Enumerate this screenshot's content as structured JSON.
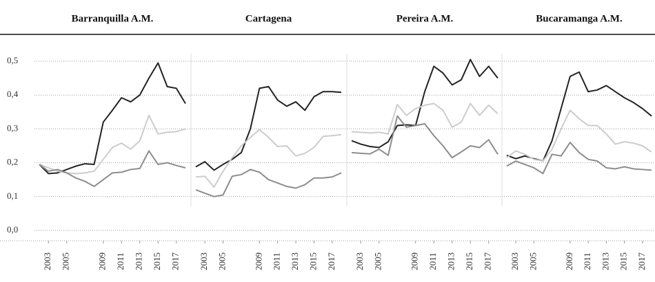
{
  "chart_data": [
    {
      "type": "line",
      "title": "Barranquilla A.M.",
      "x": [
        2002,
        2003,
        2004,
        2005,
        2006,
        2007,
        2008,
        2009,
        2010,
        2011,
        2012,
        2013,
        2014,
        2015,
        2016,
        2017,
        2018
      ],
      "xlim": [
        2002,
        2018
      ],
      "xticks": [
        2003,
        2005,
        2009,
        2011,
        2013,
        2015,
        2017
      ],
      "ylim": [
        0,
        0.5
      ],
      "yticks": [
        {
          "value": 0,
          "label": "0,0"
        },
        {
          "value": 0.1,
          "label": "0,1"
        },
        {
          "value": 0.2,
          "label": "0,2"
        },
        {
          "value": 0.3,
          "label": "0,3"
        },
        {
          "value": 0.4,
          "label": "0,4"
        },
        {
          "value": 0.5,
          "label": "0,5"
        }
      ],
      "grid": true,
      "series": [
        {
          "color": "#222222",
          "values": [
            0.195,
            0.168,
            0.17,
            0.18,
            0.19,
            0.197,
            0.195,
            0.32,
            0.355,
            0.392,
            0.38,
            0.4,
            0.45,
            0.495,
            0.425,
            0.42,
            0.375
          ]
        },
        {
          "color": "#cccccc",
          "values": [
            0.195,
            0.185,
            0.175,
            0.17,
            0.168,
            0.17,
            0.175,
            0.21,
            0.245,
            0.258,
            0.24,
            0.265,
            0.34,
            0.285,
            0.29,
            0.292,
            0.3
          ]
        },
        {
          "color": "#8c8c8c",
          "values": [
            0.195,
            0.175,
            0.18,
            0.17,
            0.155,
            0.145,
            0.13,
            0.15,
            0.17,
            0.172,
            0.18,
            0.183,
            0.235,
            0.195,
            0.2,
            0.192,
            0.185
          ]
        }
      ]
    },
    {
      "type": "line",
      "title": "Cartagena",
      "x": [
        2002,
        2003,
        2004,
        2005,
        2006,
        2007,
        2008,
        2009,
        2010,
        2011,
        2012,
        2013,
        2014,
        2015,
        2016,
        2017,
        2018
      ],
      "xlim": [
        2002,
        2018
      ],
      "xticks": [
        2003,
        2005,
        2009,
        2011,
        2013,
        2015,
        2017
      ],
      "series": [
        {
          "color": "#222222",
          "values": [
            0.188,
            0.203,
            0.178,
            0.195,
            0.21,
            0.23,
            0.3,
            0.42,
            0.425,
            0.385,
            0.367,
            0.38,
            0.355,
            0.395,
            0.41,
            0.41,
            0.408
          ]
        },
        {
          "color": "#cccccc",
          "values": [
            0.158,
            0.16,
            0.128,
            0.175,
            0.215,
            0.25,
            0.275,
            0.298,
            0.275,
            0.248,
            0.25,
            0.22,
            0.228,
            0.245,
            0.278,
            0.28,
            0.283
          ]
        },
        {
          "color": "#8c8c8c",
          "values": [
            0.12,
            0.11,
            0.1,
            0.105,
            0.16,
            0.165,
            0.18,
            0.172,
            0.15,
            0.14,
            0.13,
            0.125,
            0.135,
            0.155,
            0.155,
            0.158,
            0.17
          ]
        }
      ]
    },
    {
      "type": "line",
      "title": "Pereira A.M.",
      "x": [
        2002,
        2003,
        2004,
        2005,
        2006,
        2007,
        2008,
        2009,
        2010,
        2011,
        2012,
        2013,
        2014,
        2015,
        2016,
        2017,
        2018
      ],
      "xlim": [
        2002,
        2018
      ],
      "xticks": [
        2003,
        2005,
        2009,
        2011,
        2013,
        2015,
        2017
      ],
      "series": [
        {
          "color": "#222222",
          "values": [
            0.265,
            0.255,
            0.248,
            0.245,
            0.262,
            0.31,
            0.312,
            0.31,
            0.41,
            0.485,
            0.465,
            0.43,
            0.445,
            0.505,
            0.455,
            0.485,
            0.45
          ]
        },
        {
          "color": "#cccccc",
          "values": [
            0.292,
            0.29,
            0.288,
            0.29,
            0.285,
            0.372,
            0.34,
            0.36,
            0.37,
            0.375,
            0.355,
            0.305,
            0.32,
            0.375,
            0.34,
            0.37,
            0.345
          ]
        },
        {
          "color": "#8c8c8c",
          "values": [
            0.23,
            0.228,
            0.226,
            0.24,
            0.222,
            0.338,
            0.305,
            0.31,
            0.315,
            0.28,
            0.25,
            0.215,
            0.232,
            0.25,
            0.245,
            0.268,
            0.225
          ]
        }
      ]
    },
    {
      "type": "line",
      "title": "Bucaramanga A.M.",
      "x": [
        2002,
        2003,
        2004,
        2005,
        2006,
        2007,
        2008,
        2009,
        2010,
        2011,
        2012,
        2013,
        2014,
        2015,
        2016,
        2017,
        2018
      ],
      "xlim": [
        2002,
        2018
      ],
      "xticks": [
        2003,
        2005,
        2009,
        2011,
        2013,
        2015,
        2017
      ],
      "series": [
        {
          "color": "#222222",
          "values": [
            0.222,
            0.212,
            0.22,
            0.212,
            0.205,
            0.265,
            0.36,
            0.455,
            0.468,
            0.41,
            0.415,
            0.428,
            0.41,
            0.392,
            0.378,
            0.36,
            0.338
          ]
        },
        {
          "color": "#cccccc",
          "values": [
            0.215,
            0.235,
            0.225,
            0.21,
            0.205,
            0.24,
            0.3,
            0.355,
            0.33,
            0.31,
            0.31,
            0.285,
            0.255,
            0.262,
            0.258,
            0.25,
            0.232
          ]
        },
        {
          "color": "#8c8c8c",
          "values": [
            0.19,
            0.205,
            0.195,
            0.185,
            0.168,
            0.225,
            0.22,
            0.26,
            0.23,
            0.21,
            0.205,
            0.185,
            0.182,
            0.188,
            0.182,
            0.18,
            0.178
          ]
        }
      ]
    }
  ]
}
